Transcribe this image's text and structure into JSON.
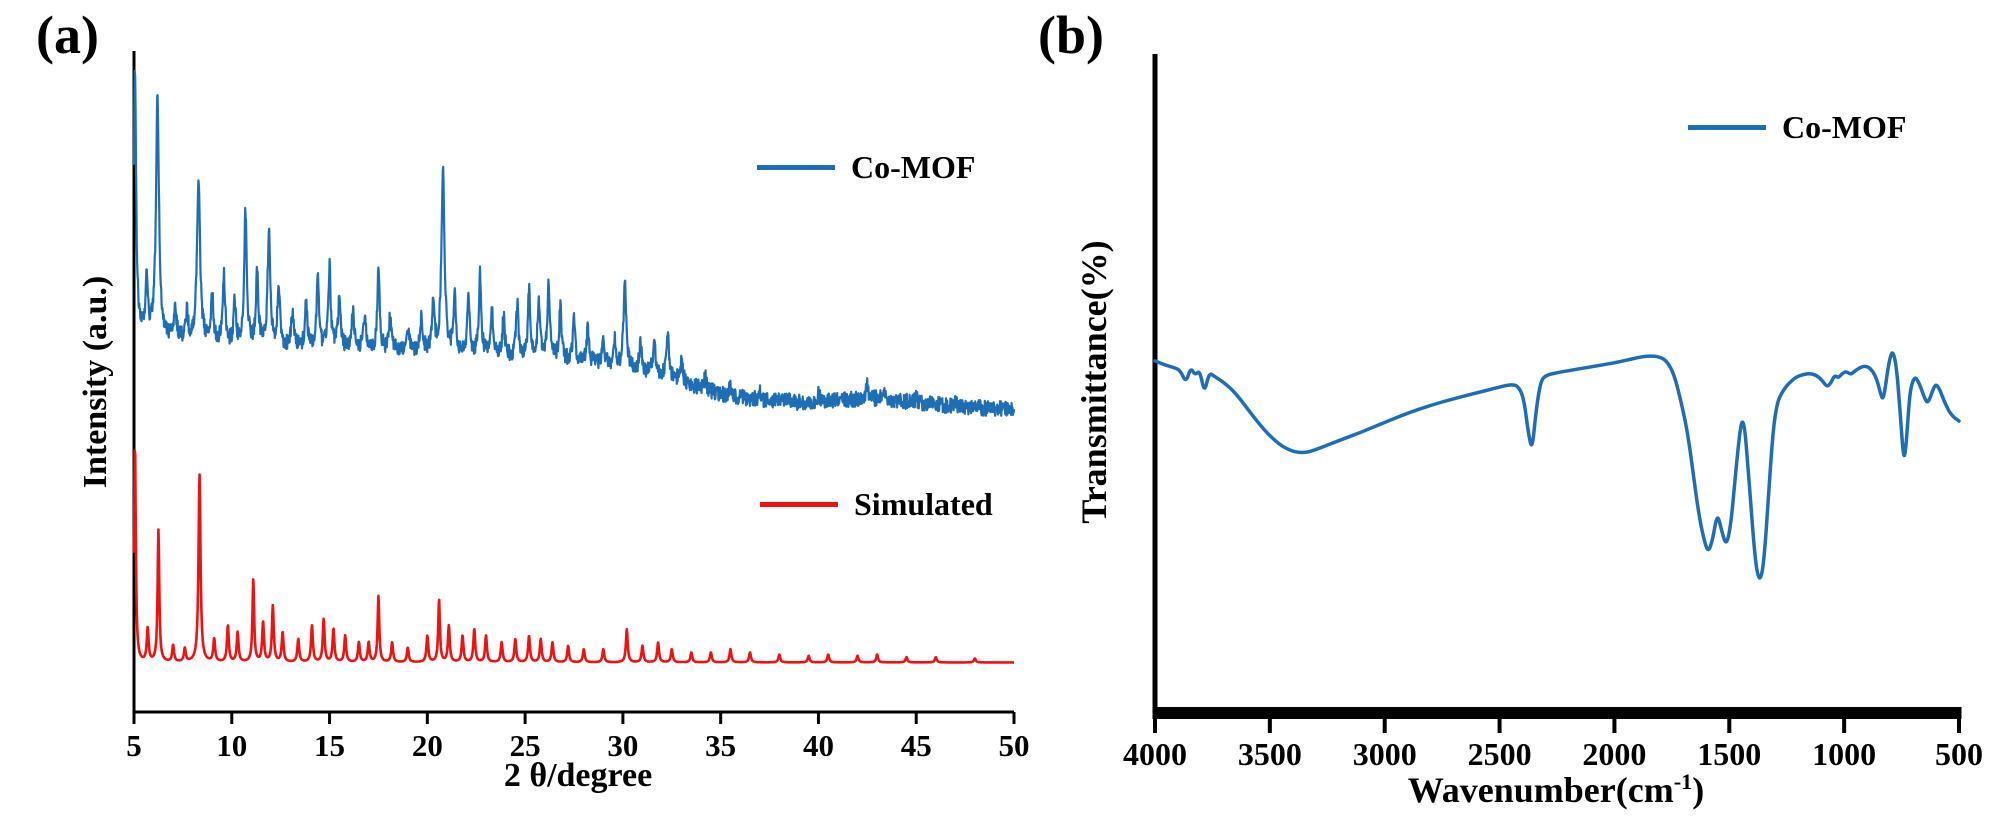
{
  "colors": {
    "blue": "#1f6eb4",
    "red": "#f01111",
    "axis": "#000000",
    "background": "#ffffff"
  },
  "panels": {
    "a": {
      "tag": "(a)",
      "xlabel": "2 θ/degree",
      "ylabel": "Intensity (a.u.)",
      "legend": [
        {
          "label": "Co-MOF",
          "color": "#1f6eb4"
        },
        {
          "label": "Simulated",
          "color": "#f01111"
        }
      ]
    },
    "b": {
      "tag": "(b)",
      "xlabel_pre": "Wavenumber(cm",
      "xlabel_sup": "-1",
      "xlabel_post": ")",
      "ylabel": "Transmittance(%)",
      "legend": [
        {
          "label": "Co-MOF",
          "color": "#1f6eb4"
        }
      ]
    }
  },
  "chart_data": [
    {
      "type": "line",
      "xlabel": "2 θ/degree",
      "ylabel": "Intensity (a.u.)",
      "xlim": [
        5,
        50
      ],
      "x_ticks": [
        5,
        10,
        15,
        20,
        25,
        30,
        35,
        40,
        45,
        50
      ],
      "y_ticks": [],
      "grid": false,
      "legend_position": "inside right (Co-MOF upper, Simulated lower)",
      "series": [
        {
          "name": "Co-MOF",
          "color": "#1f6eb4",
          "stroke_width": 2.2,
          "noise": 0.012,
          "peak_width": 0.07,
          "baseline": [
            [
              5,
              0.57
            ],
            [
              10,
              0.555
            ],
            [
              15,
              0.55
            ],
            [
              20,
              0.545
            ],
            [
              25,
              0.535
            ],
            [
              28,
              0.53
            ],
            [
              30,
              0.52
            ],
            [
              32,
              0.51
            ],
            [
              33.5,
              0.495
            ],
            [
              35,
              0.48
            ],
            [
              37,
              0.472
            ],
            [
              39,
              0.468
            ],
            [
              41,
              0.472
            ],
            [
              43,
              0.474
            ],
            [
              45,
              0.468
            ],
            [
              47,
              0.462
            ],
            [
              50,
              0.458
            ]
          ],
          "peaks": [
            [
              5.05,
              0.4,
              0.07
            ],
            [
              5.65,
              0.08
            ],
            [
              6.2,
              0.36,
              0.09
            ],
            [
              7.1,
              0.05
            ],
            [
              7.7,
              0.04
            ],
            [
              8.3,
              0.25,
              0.09
            ],
            [
              9.0,
              0.07
            ],
            [
              9.6,
              0.1
            ],
            [
              10.15,
              0.06
            ],
            [
              10.7,
              0.2,
              0.08
            ],
            [
              11.3,
              0.11
            ],
            [
              11.9,
              0.17,
              0.08
            ],
            [
              12.4,
              0.09
            ],
            [
              13.1,
              0.05
            ],
            [
              13.8,
              0.07
            ],
            [
              14.4,
              0.1
            ],
            [
              15.0,
              0.12
            ],
            [
              15.5,
              0.08
            ],
            [
              16.2,
              0.06
            ],
            [
              16.8,
              0.05
            ],
            [
              17.5,
              0.12
            ],
            [
              18.1,
              0.05
            ],
            [
              19.0,
              0.04
            ],
            [
              19.7,
              0.05
            ],
            [
              20.3,
              0.07
            ],
            [
              20.8,
              0.28,
              0.09
            ],
            [
              21.4,
              0.08
            ],
            [
              22.1,
              0.09
            ],
            [
              22.7,
              0.12
            ],
            [
              23.3,
              0.07
            ],
            [
              23.9,
              0.06
            ],
            [
              24.6,
              0.08
            ],
            [
              25.2,
              0.1
            ],
            [
              25.7,
              0.09
            ],
            [
              26.2,
              0.12
            ],
            [
              26.8,
              0.08
            ],
            [
              27.5,
              0.06
            ],
            [
              28.2,
              0.05
            ],
            [
              29.0,
              0.04
            ],
            [
              29.6,
              0.04
            ],
            [
              30.1,
              0.13,
              0.08
            ],
            [
              30.9,
              0.04
            ],
            [
              31.6,
              0.05
            ],
            [
              32.3,
              0.06
            ],
            [
              33.0,
              0.03
            ],
            [
              34.2,
              0.02
            ],
            [
              35.5,
              0.015
            ],
            [
              37.0,
              0.012
            ],
            [
              38.5,
              0.01
            ],
            [
              40.0,
              0.012
            ],
            [
              42.5,
              0.022
            ],
            [
              43.3,
              0.015
            ],
            [
              45.0,
              0.008
            ],
            [
              47.0,
              0.006
            ]
          ]
        },
        {
          "name": "Simulated",
          "color": "#f01111",
          "stroke_width": 2.6,
          "noise": 0,
          "peak_width": 0.055,
          "baseline": [
            [
              5,
              0.075
            ],
            [
              50,
              0.075
            ]
          ],
          "peaks": [
            [
              5.05,
              0.33,
              0.05
            ],
            [
              5.7,
              0.05
            ],
            [
              6.25,
              0.2,
              0.05
            ],
            [
              7.0,
              0.025
            ],
            [
              7.6,
              0.02
            ],
            [
              8.35,
              0.285,
              0.06
            ],
            [
              9.1,
              0.035
            ],
            [
              9.8,
              0.055
            ],
            [
              10.3,
              0.045
            ],
            [
              11.1,
              0.125,
              0.05
            ],
            [
              11.6,
              0.06
            ],
            [
              12.1,
              0.085
            ],
            [
              12.6,
              0.045
            ],
            [
              13.4,
              0.035
            ],
            [
              14.1,
              0.055
            ],
            [
              14.7,
              0.065
            ],
            [
              15.2,
              0.05
            ],
            [
              15.8,
              0.04
            ],
            [
              16.5,
              0.03
            ],
            [
              17.0,
              0.03
            ],
            [
              17.5,
              0.1,
              0.05
            ],
            [
              18.2,
              0.03
            ],
            [
              19.0,
              0.022
            ],
            [
              20.0,
              0.04
            ],
            [
              20.6,
              0.095,
              0.05
            ],
            [
              21.1,
              0.055
            ],
            [
              21.8,
              0.04
            ],
            [
              22.4,
              0.05
            ],
            [
              23.0,
              0.04
            ],
            [
              23.8,
              0.03
            ],
            [
              24.5,
              0.035
            ],
            [
              25.2,
              0.04
            ],
            [
              25.8,
              0.035
            ],
            [
              26.4,
              0.03
            ],
            [
              27.2,
              0.025
            ],
            [
              28.0,
              0.02
            ],
            [
              29.0,
              0.02
            ],
            [
              30.2,
              0.05
            ],
            [
              31.0,
              0.025
            ],
            [
              31.8,
              0.03
            ],
            [
              32.5,
              0.02
            ],
            [
              33.5,
              0.015
            ],
            [
              34.5,
              0.015
            ],
            [
              35.5,
              0.02
            ],
            [
              36.5,
              0.015
            ],
            [
              38.0,
              0.012
            ],
            [
              39.5,
              0.01
            ],
            [
              40.5,
              0.012
            ],
            [
              42.0,
              0.01
            ],
            [
              43.0,
              0.012
            ],
            [
              44.5,
              0.008
            ],
            [
              46.0,
              0.008
            ],
            [
              48.0,
              0.006
            ]
          ]
        }
      ]
    },
    {
      "type": "line",
      "xlabel": "Wavenumber(cm-1)",
      "ylabel": "Transmittance(%)",
      "xlim": [
        4000,
        500
      ],
      "x_reversed": true,
      "x_ticks": [
        4000,
        3500,
        3000,
        2500,
        2000,
        1500,
        1000,
        500
      ],
      "y_ticks": [],
      "grid": false,
      "legend_position": "inside top right",
      "series": [
        {
          "name": "Co-MOF",
          "color": "#1f6eb4",
          "stroke_width": 3.5,
          "points": [
            [
              4000,
              0.53
            ],
            [
              3960,
              0.524
            ],
            [
              3920,
              0.52
            ],
            [
              3890,
              0.516
            ],
            [
              3865,
              0.496
            ],
            [
              3845,
              0.52
            ],
            [
              3825,
              0.508
            ],
            [
              3805,
              0.516
            ],
            [
              3785,
              0.48
            ],
            [
              3765,
              0.512
            ],
            [
              3740,
              0.506
            ],
            [
              3700,
              0.497
            ],
            [
              3650,
              0.481
            ],
            [
              3600,
              0.458
            ],
            [
              3550,
              0.435
            ],
            [
              3500,
              0.415
            ],
            [
              3450,
              0.4
            ],
            [
              3400,
              0.391
            ],
            [
              3350,
              0.389
            ],
            [
              3300,
              0.394
            ],
            [
              3200,
              0.408
            ],
            [
              3100,
              0.421
            ],
            [
              3000,
              0.436
            ],
            [
              2900,
              0.45
            ],
            [
              2800,
              0.462
            ],
            [
              2700,
              0.472
            ],
            [
              2600,
              0.481
            ],
            [
              2500,
              0.49
            ],
            [
              2450,
              0.494
            ],
            [
              2420,
              0.492
            ],
            [
              2395,
              0.474
            ],
            [
              2375,
              0.42
            ],
            [
              2358,
              0.392
            ],
            [
              2342,
              0.452
            ],
            [
              2322,
              0.498
            ],
            [
              2300,
              0.508
            ],
            [
              2250,
              0.512
            ],
            [
              2200,
              0.515
            ],
            [
              2100,
              0.521
            ],
            [
              2000,
              0.527
            ],
            [
              1950,
              0.531
            ],
            [
              1900,
              0.535
            ],
            [
              1850,
              0.538
            ],
            [
              1800,
              0.536
            ],
            [
              1770,
              0.529
            ],
            [
              1740,
              0.509
            ],
            [
              1710,
              0.468
            ],
            [
              1680,
              0.418
            ],
            [
              1655,
              0.352
            ],
            [
              1635,
              0.3
            ],
            [
              1612,
              0.258
            ],
            [
              1592,
              0.236
            ],
            [
              1572,
              0.256
            ],
            [
              1552,
              0.298
            ],
            [
              1532,
              0.268
            ],
            [
              1512,
              0.246
            ],
            [
              1492,
              0.282
            ],
            [
              1472,
              0.36
            ],
            [
              1452,
              0.428
            ],
            [
              1441,
              0.44
            ],
            [
              1430,
              0.418
            ],
            [
              1419,
              0.368
            ],
            [
              1408,
              0.318
            ],
            [
              1397,
              0.268
            ],
            [
              1386,
              0.224
            ],
            [
              1375,
              0.2
            ],
            [
              1364,
              0.196
            ],
            [
              1353,
              0.214
            ],
            [
              1342,
              0.256
            ],
            [
              1331,
              0.314
            ],
            [
              1320,
              0.372
            ],
            [
              1309,
              0.422
            ],
            [
              1298,
              0.452
            ],
            [
              1287,
              0.47
            ],
            [
              1270,
              0.482
            ],
            [
              1250,
              0.492
            ],
            [
              1230,
              0.499
            ],
            [
              1210,
              0.505
            ],
            [
              1180,
              0.509
            ],
            [
              1150,
              0.511
            ],
            [
              1120,
              0.508
            ],
            [
              1095,
              0.5
            ],
            [
              1075,
              0.49
            ],
            [
              1058,
              0.496
            ],
            [
              1042,
              0.508
            ],
            [
              1025,
              0.504
            ],
            [
              1008,
              0.511
            ],
            [
              990,
              0.514
            ],
            [
              972,
              0.509
            ],
            [
              955,
              0.514
            ],
            [
              935,
              0.519
            ],
            [
              915,
              0.522
            ],
            [
              895,
              0.521
            ],
            [
              875,
              0.514
            ],
            [
              858,
              0.502
            ],
            [
              843,
              0.482
            ],
            [
              832,
              0.47
            ],
            [
              822,
              0.486
            ],
            [
              812,
              0.512
            ],
            [
              802,
              0.532
            ],
            [
              792,
              0.544
            ],
            [
              782,
              0.538
            ],
            [
              772,
              0.518
            ],
            [
              762,
              0.478
            ],
            [
              752,
              0.43
            ],
            [
              745,
              0.398
            ],
            [
              739,
              0.382
            ],
            [
              733,
              0.392
            ],
            [
              726,
              0.422
            ],
            [
              718,
              0.462
            ],
            [
              710,
              0.488
            ],
            [
              700,
              0.5
            ],
            [
              690,
              0.505
            ],
            [
              678,
              0.499
            ],
            [
              665,
              0.488
            ],
            [
              652,
              0.475
            ],
            [
              640,
              0.466
            ],
            [
              630,
              0.47
            ],
            [
              620,
              0.479
            ],
            [
              610,
              0.489
            ],
            [
              600,
              0.494
            ],
            [
              588,
              0.489
            ],
            [
              576,
              0.479
            ],
            [
              564,
              0.468
            ],
            [
              552,
              0.459
            ],
            [
              540,
              0.451
            ],
            [
              528,
              0.446
            ],
            [
              516,
              0.442
            ],
            [
              508,
              0.44
            ],
            [
              500,
              0.438
            ]
          ]
        }
      ]
    }
  ]
}
